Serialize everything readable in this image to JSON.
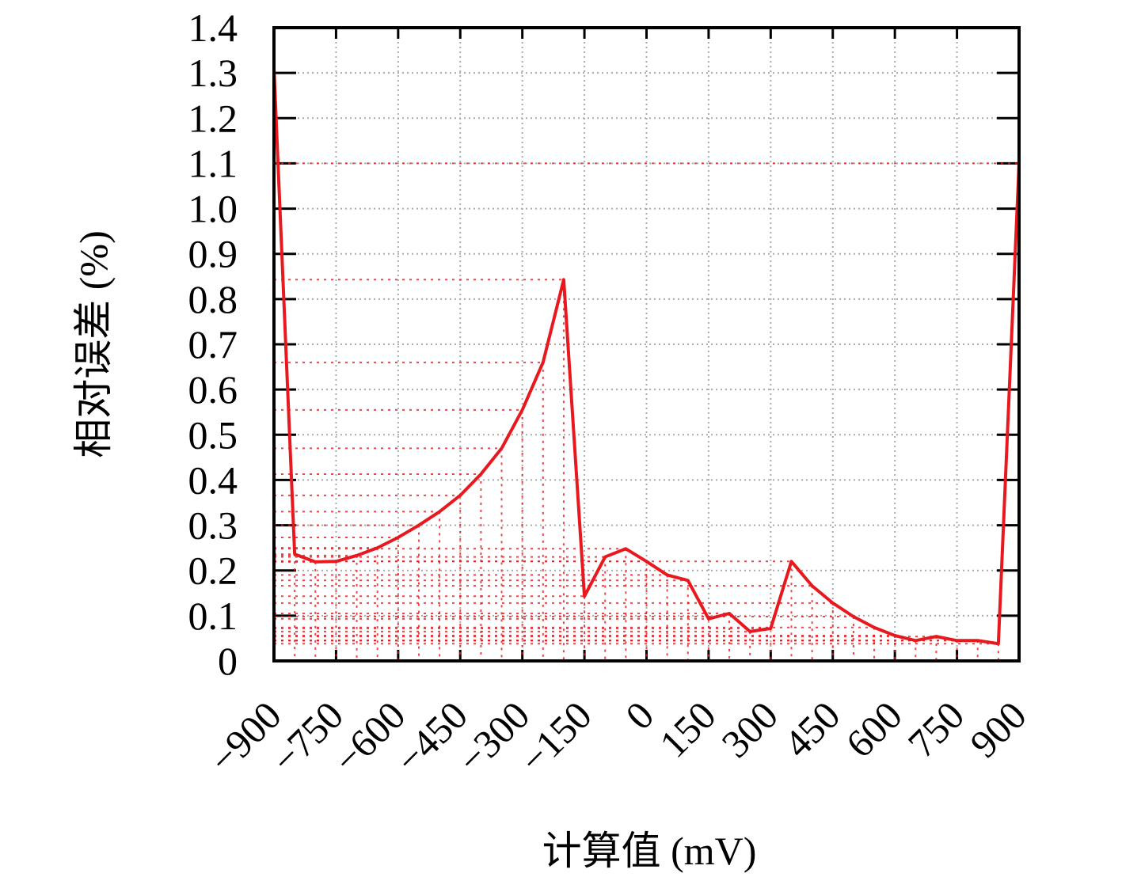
{
  "chart_data": {
    "type": "line",
    "xlabel": "计算值 (mV)",
    "ylabel": "相对误差 (%)",
    "x": [
      -900,
      -850,
      -800,
      -750,
      -700,
      -650,
      -600,
      -550,
      -500,
      -450,
      -400,
      -350,
      -300,
      -250,
      -200,
      -150,
      -100,
      -50,
      0,
      50,
      100,
      150,
      200,
      250,
      300,
      350,
      400,
      450,
      500,
      550,
      600,
      650,
      700,
      750,
      800,
      850,
      900
    ],
    "series": [
      {
        "name": "相对误差",
        "color": "#e8191e",
        "values": [
          1.31,
          0.236,
          0.219,
          0.22,
          0.233,
          0.25,
          0.273,
          0.3,
          0.33,
          0.366,
          0.413,
          0.47,
          0.555,
          0.66,
          0.843,
          0.143,
          0.23,
          0.248,
          0.22,
          0.19,
          0.178,
          0.093,
          0.105,
          0.065,
          0.072,
          0.22,
          0.166,
          0.128,
          0.098,
          0.074,
          0.056,
          0.045,
          0.054,
          0.045,
          0.045,
          0.038,
          1.1
        ]
      }
    ],
    "xlim": [
      -900,
      900
    ],
    "xticks": [
      {
        "value": -900,
        "label": "−900"
      },
      {
        "value": -750,
        "label": "−750"
      },
      {
        "value": -600,
        "label": "−600"
      },
      {
        "value": -450,
        "label": "−450"
      },
      {
        "value": -300,
        "label": "−300"
      },
      {
        "value": -150,
        "label": "−150"
      },
      0,
      150,
      300,
      450,
      600,
      750,
      900
    ],
    "ylim": [
      0,
      1.4
    ],
    "yticks": [
      0,
      0.1,
      0.2,
      0.3,
      0.4,
      0.5,
      0.6,
      0.7,
      0.8,
      0.9,
      {
        "value": 1,
        "label": "1.0"
      },
      1.1,
      1.2,
      1.3,
      1.4
    ],
    "grid": true
  }
}
